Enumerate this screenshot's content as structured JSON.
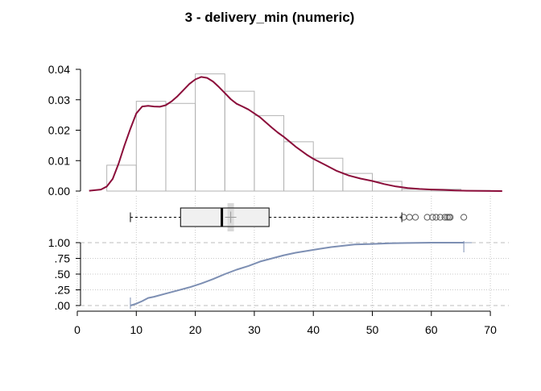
{
  "title": "3 - delivery_min (numeric)",
  "chart_data": [
    {
      "type": "bar",
      "panel": "histogram-with-density",
      "title": "3 - delivery_min (numeric)",
      "xlim": [
        0,
        72
      ],
      "ylim": [
        0,
        0.04
      ],
      "y_ticks": [
        "0.00",
        "0.01",
        "0.02",
        "0.03",
        "0.04"
      ],
      "bins": [
        {
          "x0": 5,
          "x1": 10,
          "density": 0.0085
        },
        {
          "x0": 10,
          "x1": 15,
          "density": 0.0295
        },
        {
          "x0": 15,
          "x1": 20,
          "density": 0.0288
        },
        {
          "x0": 20,
          "x1": 25,
          "density": 0.0385
        },
        {
          "x0": 25,
          "x1": 30,
          "density": 0.0328
        },
        {
          "x0": 30,
          "x1": 35,
          "density": 0.0248
        },
        {
          "x0": 35,
          "x1": 40,
          "density": 0.0162
        },
        {
          "x0": 40,
          "x1": 45,
          "density": 0.0108
        },
        {
          "x0": 45,
          "x1": 50,
          "density": 0.0058
        },
        {
          "x0": 50,
          "x1": 55,
          "density": 0.0032
        },
        {
          "x0": 55,
          "x1": 60,
          "density": 0.0006
        },
        {
          "x0": 60,
          "x1": 65,
          "density": 0.0006
        },
        {
          "x0": 65,
          "x1": 70,
          "density": 0.0002
        }
      ],
      "density_curve": {
        "x": [
          2,
          4,
          5,
          6,
          7,
          8,
          9,
          10,
          11,
          12,
          13,
          14,
          15,
          16,
          17,
          18,
          19,
          20,
          21,
          22,
          23,
          24,
          25,
          26,
          27,
          28,
          29,
          30,
          31,
          32,
          33,
          34,
          35,
          36,
          37,
          38,
          39,
          40,
          42,
          44,
          46,
          48,
          50,
          52,
          54,
          56,
          58,
          60,
          62,
          64,
          66,
          68,
          70,
          72
        ],
        "y": [
          0.0001,
          0.0005,
          0.0015,
          0.004,
          0.009,
          0.015,
          0.0205,
          0.0255,
          0.0278,
          0.028,
          0.0278,
          0.0277,
          0.0282,
          0.0295,
          0.0312,
          0.0332,
          0.0352,
          0.0367,
          0.0375,
          0.0372,
          0.036,
          0.0342,
          0.0322,
          0.0302,
          0.0287,
          0.0278,
          0.0268,
          0.0255,
          0.0242,
          0.0225,
          0.0208,
          0.0192,
          0.0178,
          0.0162,
          0.0146,
          0.0132,
          0.0118,
          0.0106,
          0.0086,
          0.0066,
          0.0051,
          0.0041,
          0.0033,
          0.0023,
          0.0015,
          0.001,
          0.0007,
          0.0005,
          0.0004,
          0.0002,
          0.0001,
          5e-05,
          2e-05,
          1e-05
        ],
        "color": "#8b0d3a"
      },
      "bar_edge_color": "#b3b3b3"
    },
    {
      "type": "boxplot",
      "panel": "boxplot",
      "whisker_low": 9,
      "q1": 17.5,
      "median": 24.5,
      "q3": 32.5,
      "whisker_high": 55,
      "mean": 26,
      "outliers": [
        55.3,
        56.3,
        57.3,
        59.3,
        60.2,
        60.8,
        61.5,
        62.3,
        62.7,
        63,
        63.2,
        65.5
      ],
      "box_fill": "#f0f0f0"
    },
    {
      "type": "line",
      "panel": "ecdf",
      "ylim": [
        0,
        1
      ],
      "y_ticks": [
        ".00",
        ".25",
        ".50",
        ".75",
        "1.00"
      ],
      "x_ticks": [
        "0",
        "10",
        "20",
        "30",
        "40",
        "50",
        "60",
        "70"
      ],
      "x": [
        9,
        10,
        11,
        12,
        13,
        15,
        17,
        19,
        21,
        23,
        25,
        27,
        29,
        31,
        33,
        35,
        37,
        39,
        41,
        43,
        45,
        47,
        50,
        53,
        56,
        60,
        65.5
      ],
      "y": [
        0,
        0.03,
        0.07,
        0.12,
        0.14,
        0.19,
        0.24,
        0.29,
        0.35,
        0.42,
        0.5,
        0.57,
        0.63,
        0.7,
        0.75,
        0.8,
        0.84,
        0.87,
        0.9,
        0.93,
        0.95,
        0.97,
        0.98,
        0.99,
        0.995,
        1.0,
        1.0
      ],
      "color": "#7d8fb3"
    }
  ]
}
